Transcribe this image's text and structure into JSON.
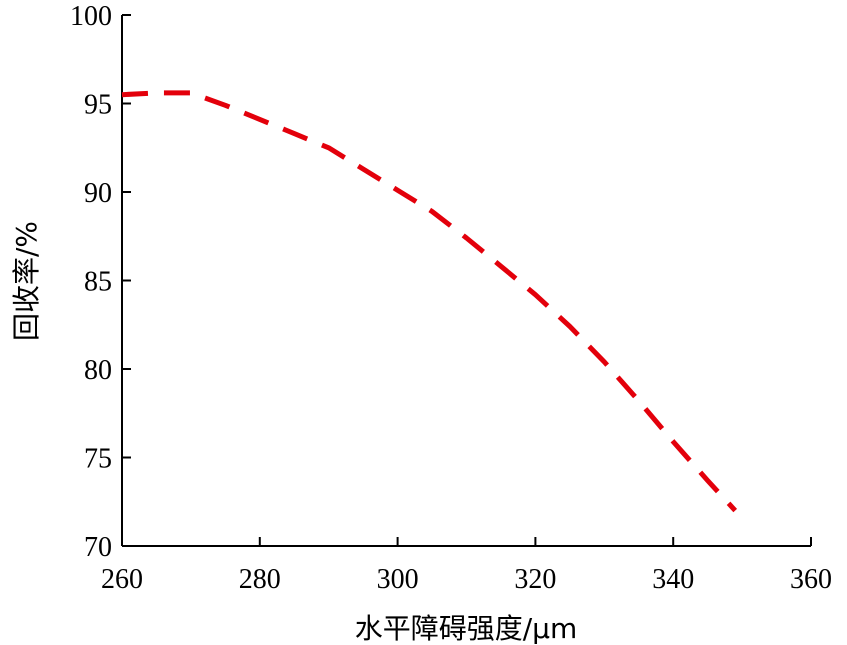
{
  "chart_data": {
    "type": "line",
    "title": "",
    "xlabel": "水平障碍强度/μm",
    "ylabel": "回收率/%",
    "xlim": [
      260,
      360
    ],
    "ylim": [
      70,
      100
    ],
    "xticks": [
      260,
      280,
      300,
      320,
      340,
      360
    ],
    "yticks": [
      70,
      75,
      80,
      85,
      90,
      95,
      100
    ],
    "grid": false,
    "legend": "none",
    "series": [
      {
        "color": "#e3000b",
        "line_style": "dashed",
        "x": [
          260,
          265,
          270,
          275,
          280,
          285,
          290,
          295,
          300,
          305,
          310,
          315,
          320,
          325,
          330,
          335,
          340,
          345,
          349
        ],
        "y": [
          95.5,
          95.6,
          95.6,
          94.9,
          94.1,
          93.3,
          92.5,
          91.3,
          90.1,
          88.9,
          87.4,
          85.8,
          84.2,
          82.4,
          80.4,
          78.2,
          75.9,
          73.7,
          72.0
        ]
      }
    ]
  }
}
